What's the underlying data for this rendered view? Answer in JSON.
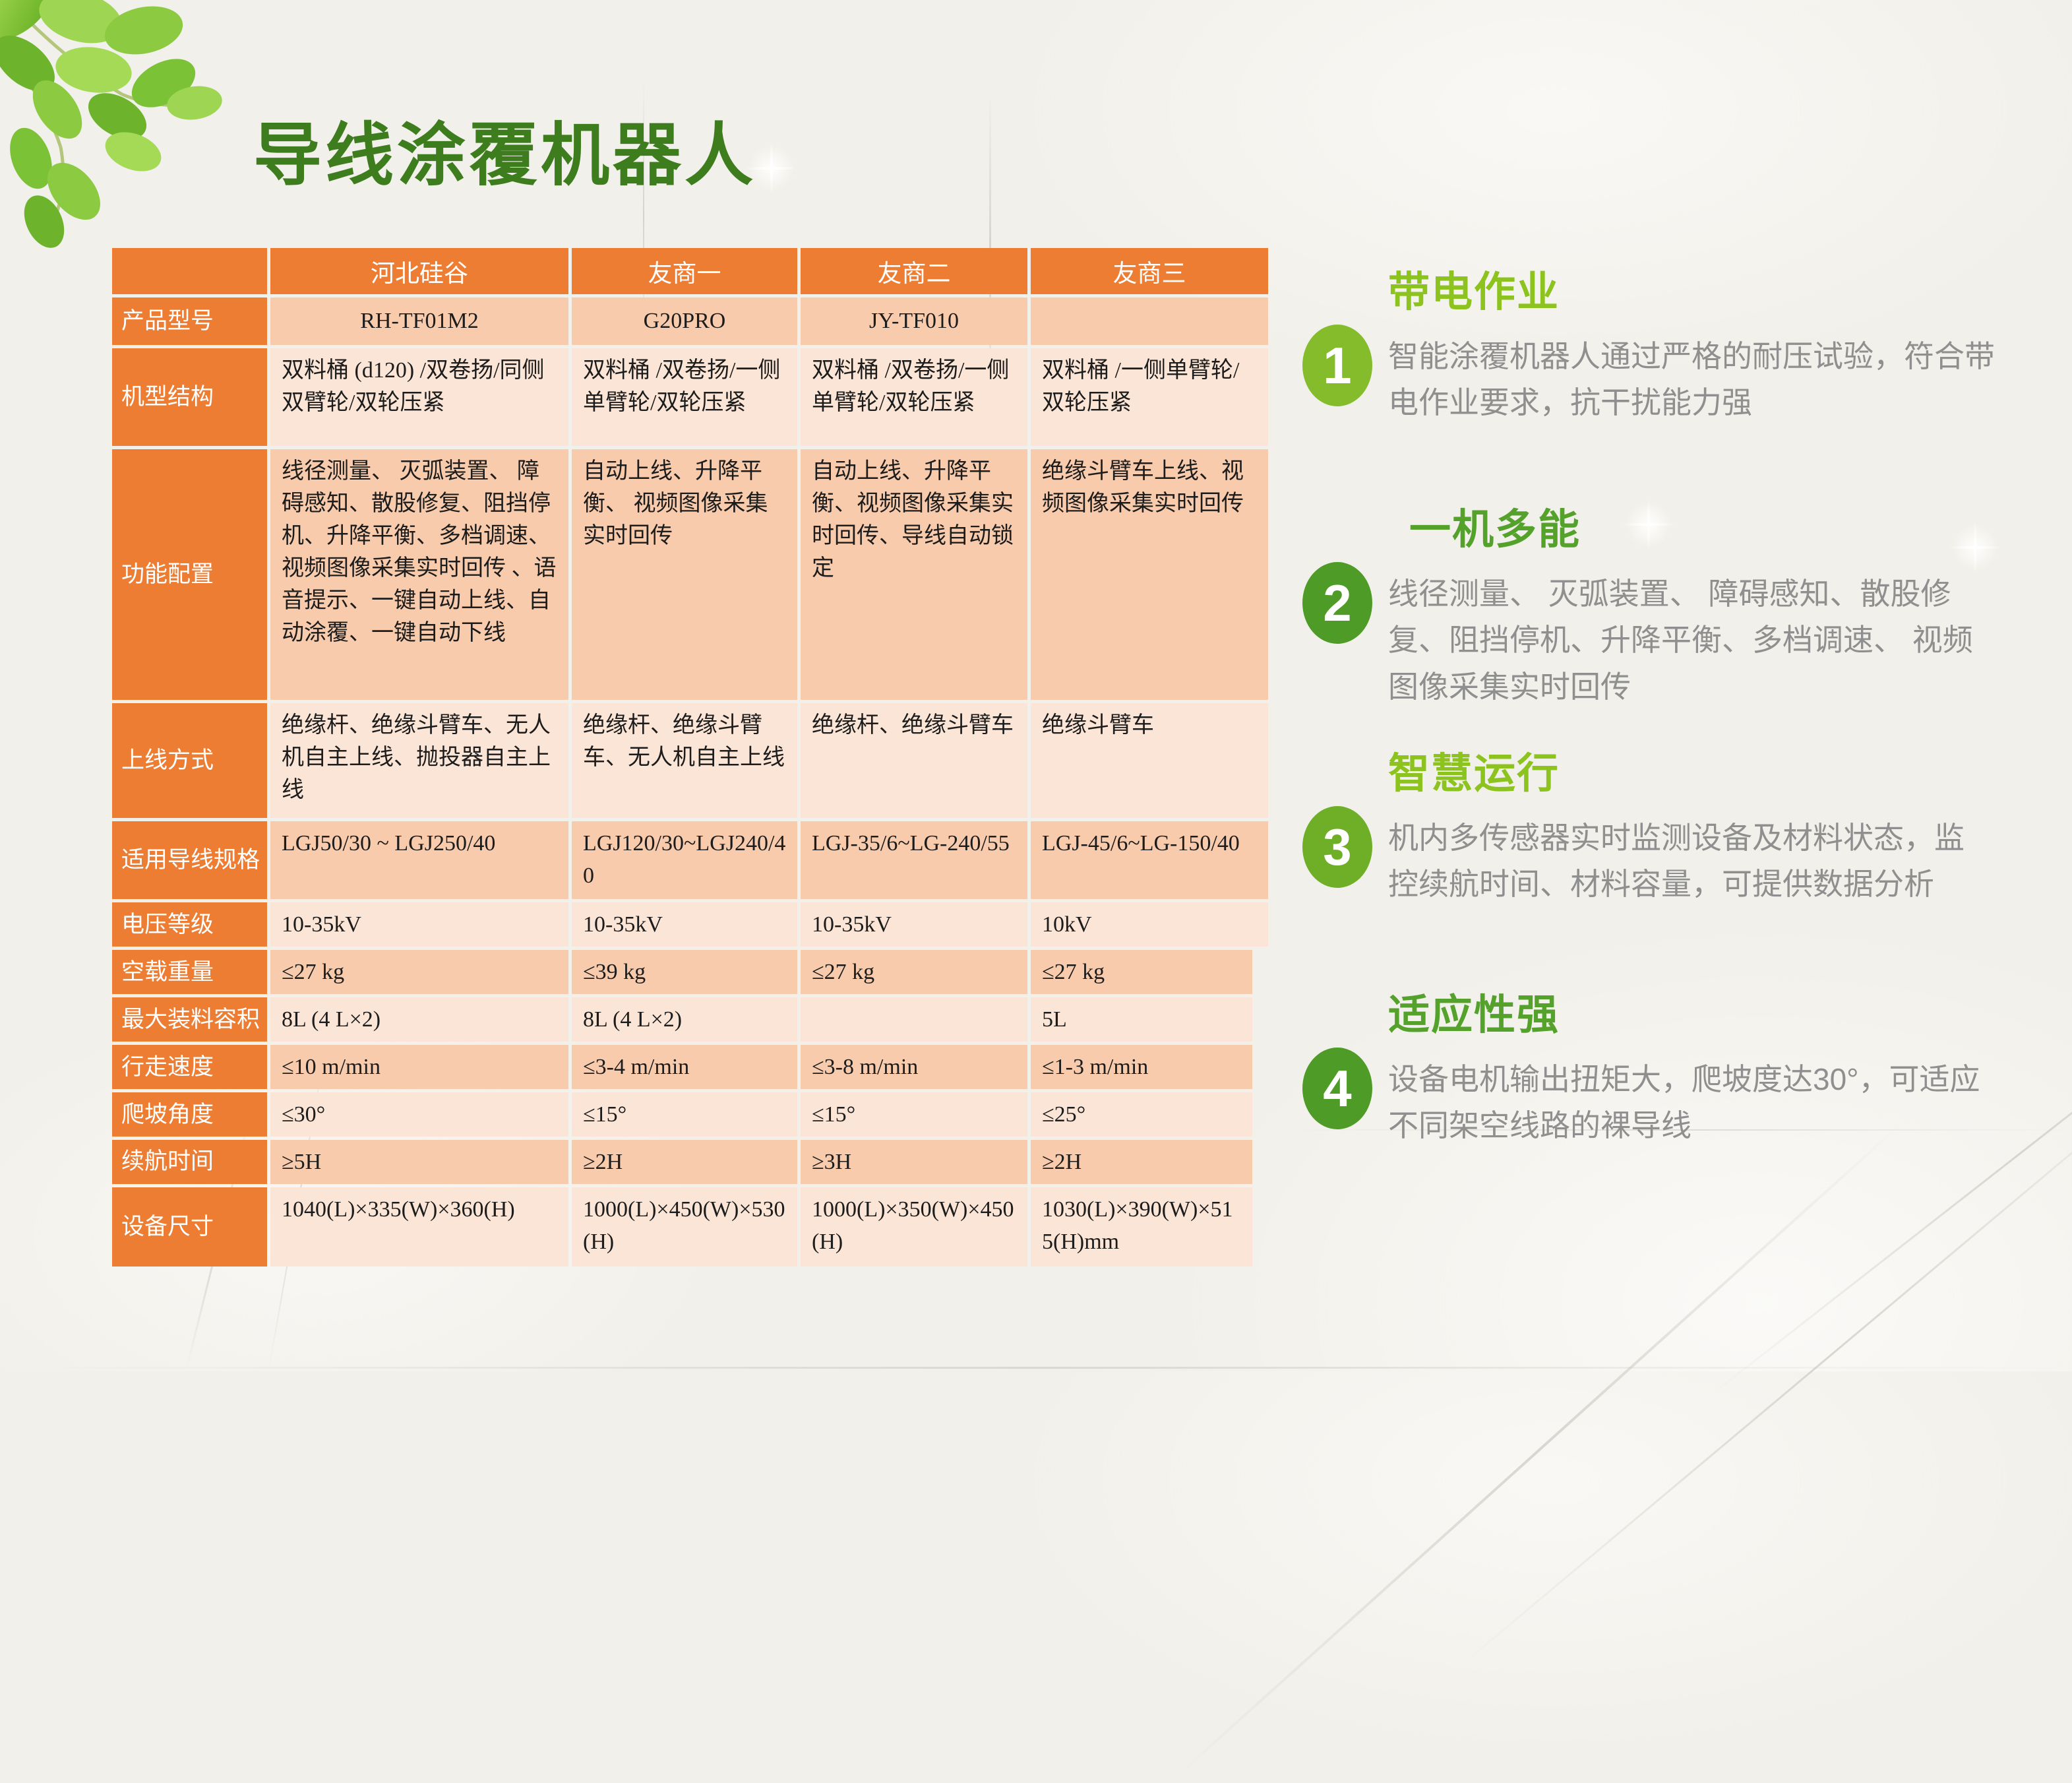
{
  "slide": {
    "title": "导线涂覆机器人"
  },
  "colors": {
    "title_green": "#3E7D1E",
    "table_orange": "#ED7D33",
    "cell_dark": "#F8CBAD",
    "cell_light": "#FBE5D6",
    "feature_lime": "#8DC31E",
    "feature_green": "#54A22B",
    "body_grey": "#8F8F8F"
  },
  "table": {
    "header": [
      "",
      "河北硅谷",
      "友商一",
      "友商二",
      "友商三"
    ],
    "rows": [
      {
        "label": "产品型号",
        "center": true,
        "cells": [
          "RH-TF01M2",
          "G20PRO",
          "JY-TF010",
          ""
        ]
      },
      {
        "label": "机型结构",
        "cells": [
          "双料桶 (d120) /双卷扬/同侧双臂轮/双轮压紧",
          "双料桶 /双卷扬/一侧单臂轮/双轮压紧",
          "双料桶 /双卷扬/一侧单臂轮/双轮压紧",
          "双料桶 /一侧单臂轮/双轮压紧"
        ]
      },
      {
        "label": "功能配置",
        "cells": [
          "线径测量、 灭弧装置、 障碍感知、散股修复、阻挡停机、升降平衡、多档调速、 视频图像采集实时回传 、语音提示、一键自动上线、自动涂覆、一键自动下线",
          "自动上线、升降平衡、 视频图像采集实时回传",
          "自动上线、升降平衡、视频图像采集实时回传、导线自动锁定",
          "绝缘斗臂车上线、视频图像采集实时回传"
        ]
      },
      {
        "label": "上线方式",
        "cells": [
          "绝缘杆、绝缘斗臂车、无人机自主上线、抛投器自主上线",
          "绝缘杆、绝缘斗臂车、无人机自主上线",
          "绝缘杆、绝缘斗臂车",
          "绝缘斗臂车"
        ]
      },
      {
        "label": "适用导线规格",
        "cells": [
          "LGJ50/30 ~ LGJ250/40",
          "LGJ120/30~LGJ240/40",
          "LGJ-35/6~LG-240/55",
          "LGJ-45/6~LG-150/40"
        ]
      },
      {
        "label": "电压等级",
        "cells": [
          "10-35kV",
          "10-35kV",
          "10-35kV",
          "10kV"
        ]
      },
      {
        "label": "空载重量",
        "narrow": true,
        "cells": [
          "≤27 kg",
          "≤39 kg",
          "≤27 kg",
          "≤27 kg"
        ]
      },
      {
        "label": "最大装料容积",
        "narrow": true,
        "cells": [
          "8L (4 L×2)",
          "8L (4 L×2)",
          "",
          "5L"
        ]
      },
      {
        "label": "行走速度",
        "narrow": true,
        "cells": [
          "≤10 m/min",
          "≤3-4 m/min",
          "≤3-8 m/min",
          "≤1-3 m/min"
        ]
      },
      {
        "label": "爬坡角度",
        "narrow": true,
        "cells": [
          "≤30°",
          "≤15°",
          "≤15°",
          "≤25°"
        ]
      },
      {
        "label": "续航时间",
        "narrow": true,
        "cells": [
          "≥5H",
          "≥2H",
          "≥3H",
          "≥2H"
        ]
      },
      {
        "label": "设备尺寸",
        "narrow": true,
        "cells": [
          "1040(L)×335(W)×360(H)",
          "1000(L)×450(W)×530(H)",
          "1000(L)×350(W)×450(H)",
          "1030(L)×390(W)×515(H)mm"
        ]
      }
    ]
  },
  "features": [
    {
      "num": "1",
      "title": "带电作业",
      "title_color": "#8DC31E",
      "circle_color": "#85BC2B",
      "body": "智能涂覆机器人通过严格的耐压试验，符合带\n电作业要求，抗干扰能力强"
    },
    {
      "num": "2",
      "title": "一机多能",
      "title_color": "#54A22B",
      "circle_color": "#4E9C27",
      "body": "线径测量、 灭弧装置、 障碍感知、散股修\n复、阻挡停机、升降平衡、多档调速、 视频\n图像采集实时回传"
    },
    {
      "num": "3",
      "title": "智慧运行",
      "title_color": "#8DC31E",
      "circle_color": "#6FAF28",
      "body": "机内多传感器实时监测设备及材料状态，监\n控续航时间、材料容量，可提供数据分析"
    },
    {
      "num": "4",
      "title": "适应性强",
      "title_color": "#54A22B",
      "circle_color": "#4E9C27",
      "body": "设备电机输出扭矩大，爬坡度达30°，可适应\n不同架空线路的裸导线"
    }
  ]
}
